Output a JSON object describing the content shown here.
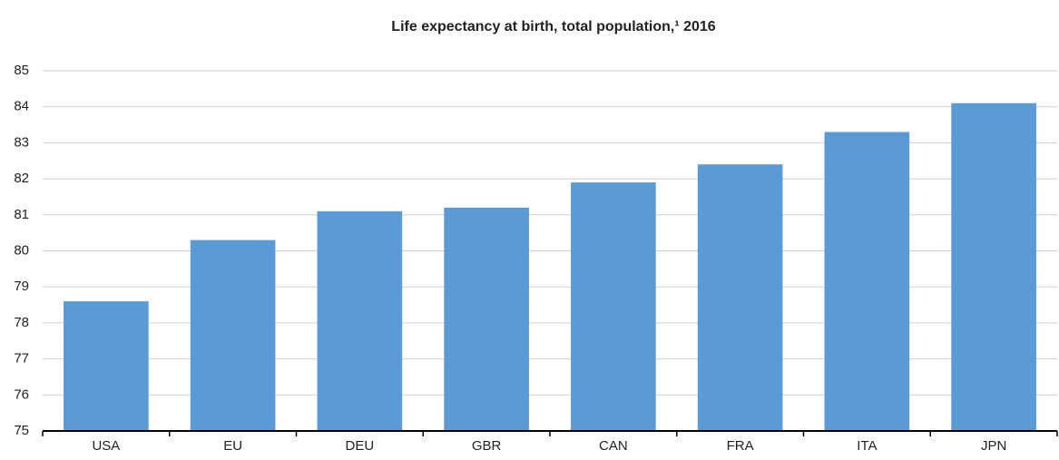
{
  "chart_data": {
    "type": "bar",
    "title": "Life expectancy  at birth, total population,¹ 2016",
    "categories": [
      "USA",
      "EU",
      "DEU",
      "GBR",
      "CAN",
      "FRA",
      "ITA",
      "JPN"
    ],
    "values": [
      78.6,
      80.3,
      81.1,
      81.2,
      81.9,
      82.4,
      83.3,
      84.1
    ],
    "color": "#5b9bd5",
    "ylim": [
      75,
      85
    ],
    "yticks": [
      75,
      76,
      77,
      78,
      79,
      80,
      81,
      82,
      83,
      84,
      85
    ],
    "grid": true
  }
}
